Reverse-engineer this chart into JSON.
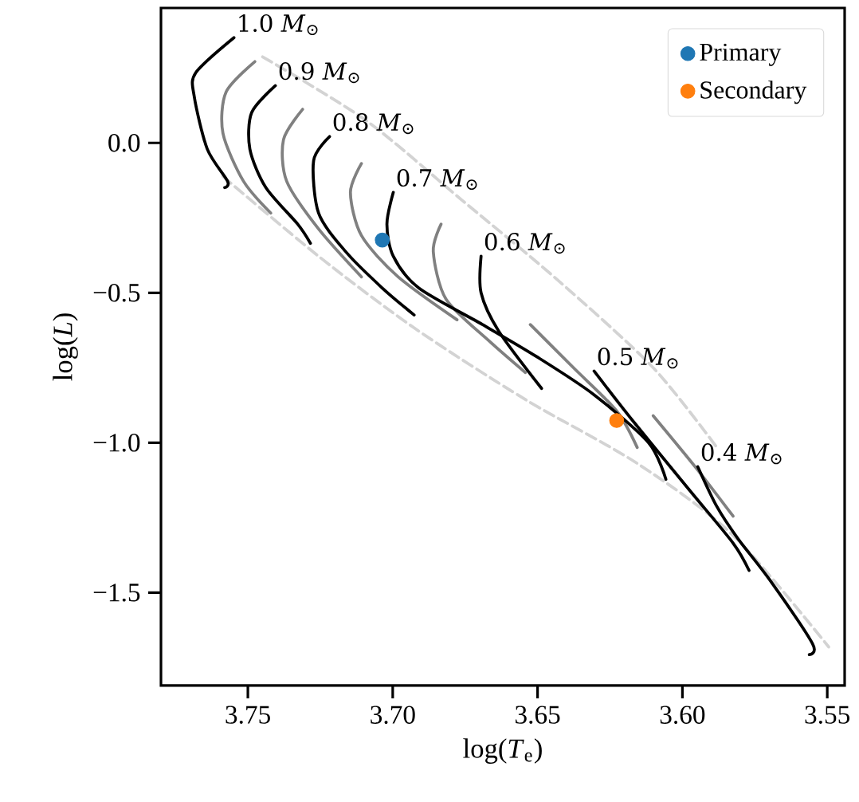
{
  "chart_data": {
    "type": "line",
    "xlabel": "log(*T*$_{e}$)",
    "ylabel": "log(*L*)",
    "xlim": [
      3.78,
      3.544
    ],
    "ylim": [
      -1.81,
      0.45
    ],
    "xticks": [
      {
        "value": 3.75,
        "label": "3.75"
      },
      {
        "value": 3.7,
        "label": "3.70"
      },
      {
        "value": 3.65,
        "label": "3.65"
      },
      {
        "value": 3.6,
        "label": "3.60"
      },
      {
        "value": 3.55,
        "label": "3.55"
      }
    ],
    "yticks": [
      {
        "value": -1.5,
        "label": "−1.5"
      },
      {
        "value": -1.0,
        "label": "−1.0"
      },
      {
        "value": -0.5,
        "label": "−0.5"
      },
      {
        "value": 0.0,
        "label": "0.0"
      }
    ],
    "grid": false,
    "legend": "top right",
    "marker": "none",
    "series": [
      {
        "color": "#d3d3d3",
        "line_style": "dashed",
        "x": [
          3.7586,
          3.7256,
          3.6926,
          3.6542,
          3.6156,
          3.5825,
          3.5495
        ],
        "values": [
          -0.112,
          -0.378,
          -0.617,
          -0.856,
          -1.069,
          -1.309,
          -1.681
        ]
      },
      {
        "color": "#d3d3d3",
        "line_style": "dashed",
        "x": [
          3.7449,
          3.7091,
          3.6761,
          3.6431,
          3.6101,
          3.5881
        ],
        "values": [
          0.287,
          0.074,
          -0.191,
          -0.457,
          -0.75,
          -1.016
        ]
      },
      {
        "color": "#808080",
        "line_style": "solid",
        "x": [
          3.7476,
          3.7575,
          3.7586,
          3.7515,
          3.7421
        ],
        "values": [
          0.271,
          0.17,
          0.032,
          -0.128,
          -0.234
        ]
      },
      {
        "color": "#808080",
        "line_style": "solid",
        "x": [
          3.7311,
          3.7377,
          3.7366,
          3.7256,
          3.7108
        ],
        "values": [
          0.112,
          0.011,
          -0.128,
          -0.287,
          -0.447
        ]
      },
      {
        "color": "#808080",
        "line_style": "solid",
        "x": [
          3.7108,
          3.7146,
          3.7108,
          3.6981,
          3.6778
        ],
        "values": [
          -0.069,
          -0.165,
          -0.309,
          -0.447,
          -0.59
        ]
      },
      {
        "color": "#808080",
        "line_style": "solid",
        "x": [
          3.6833,
          3.686,
          3.6816,
          3.6668,
          3.6542
        ],
        "values": [
          -0.271,
          -0.362,
          -0.521,
          -0.66,
          -0.766
        ]
      },
      {
        "color": "#808080",
        "line_style": "solid",
        "x": [
          3.6525,
          3.6376,
          3.6227,
          3.6156
        ],
        "values": [
          -0.606,
          -0.75,
          -0.894,
          -1.016
        ]
      },
      {
        "color": "#808080",
        "line_style": "solid",
        "x": [
          3.6101,
          3.5952,
          3.5825
        ],
        "values": [
          -0.91,
          -1.085,
          -1.245
        ]
      },
      {
        "color": "#000000",
        "line_style": "solid",
        "x": [
          3.7548,
          3.768,
          3.7685,
          3.764,
          3.757,
          3.758
        ],
        "values": [
          0.351,
          0.234,
          0.154,
          -0.021,
          -0.128,
          -0.149
        ]
      },
      {
        "color": "#000000",
        "line_style": "solid",
        "x": [
          3.7405,
          3.7487,
          3.7493,
          3.7438,
          3.7328,
          3.7284
        ],
        "values": [
          0.191,
          0.101,
          -0.021,
          -0.149,
          -0.271,
          -0.335
        ]
      },
      {
        "color": "#000000",
        "line_style": "solid",
        "x": [
          3.7218,
          3.7273,
          3.7256,
          3.7163,
          3.7036,
          3.6926
        ],
        "values": [
          0.021,
          -0.059,
          -0.234,
          -0.362,
          -0.484,
          -0.574
        ]
      },
      {
        "color": "#000000",
        "line_style": "solid",
        "x": [
          3.6998,
          3.702,
          3.6998,
          3.691,
          3.669,
          3.6503,
          3.6305,
          3.6117,
          3.6057
        ],
        "values": [
          -0.165,
          -0.271,
          -0.378,
          -0.484,
          -0.606,
          -0.713,
          -0.84,
          -1.0,
          -1.122
        ]
      },
      {
        "color": "#000000",
        "line_style": "solid",
        "x": [
          3.6695,
          3.6695,
          3.6634,
          3.6486
        ],
        "values": [
          -0.378,
          -0.5,
          -0.628,
          -0.819
        ]
      },
      {
        "color": "#000000",
        "line_style": "solid",
        "x": [
          3.6305,
          3.6172,
          3.5974,
          3.5825,
          3.577
        ],
        "values": [
          -0.761,
          -0.926,
          -1.16,
          -1.335,
          -1.426
        ]
      },
      {
        "color": "#000000",
        "line_style": "solid",
        "x": [
          3.5947,
          3.5881,
          3.5809,
          3.5699,
          3.5551,
          3.5562
        ],
        "values": [
          -1.08,
          -1.213,
          -1.319,
          -1.457,
          -1.67,
          -1.707
        ]
      },
      {
        "type": "scatter",
        "marker": "circle",
        "name": "Primary",
        "color": "#1f77b4",
        "x": [
          3.7036
        ],
        "values": [
          -0.324
        ]
      },
      {
        "type": "scatter",
        "marker": "circle",
        "name": "Secondary",
        "color": "#ff7f0e",
        "x": [
          3.6227
        ],
        "values": [
          -0.926
        ]
      }
    ],
    "annotations": [
      {
        "text": "1.0 *M*$_{⊙}$",
        "x": 3.7548,
        "y": 0.351
      },
      {
        "text": "0.9 *M*$_{⊙}$",
        "x": 3.7405,
        "y": 0.191
      },
      {
        "text": "0.8 *M*$_{⊙}$",
        "x": 3.7218,
        "y": 0.021
      },
      {
        "text": "0.7 *M*$_{⊙}$",
        "x": 3.6998,
        "y": -0.165
      },
      {
        "text": "0.6 *M*$_{⊙}$",
        "x": 3.6695,
        "y": -0.378
      },
      {
        "text": "0.5 *M*$_{⊙}$",
        "x": 3.6305,
        "y": -0.761
      },
      {
        "text": "0.4 *M*$_{⊙}$",
        "x": 3.5947,
        "y": -1.08
      }
    ]
  }
}
